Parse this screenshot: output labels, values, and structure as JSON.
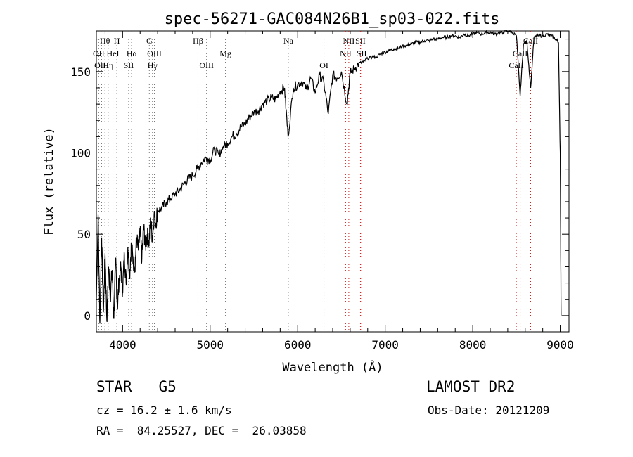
{
  "chart_data": {
    "type": "line",
    "title": "spec-56271-GAC084N26B1_sp03-022.fits",
    "xlabel": "Wavelength (Å)",
    "ylabel": "Flux (relative)",
    "xlim": [
      3700,
      9100
    ],
    "ylim": [
      -10,
      175
    ],
    "xticks": [
      4000,
      5000,
      6000,
      7000,
      8000,
      9000
    ],
    "yticks": [
      0,
      50,
      100,
      150
    ],
    "grid": false,
    "series": [
      {
        "x": [
          3700,
          3720,
          3740,
          3760,
          3780,
          3800,
          3820,
          3840,
          3860,
          3880,
          3900,
          3920,
          3940,
          3960,
          3980,
          4000,
          4020,
          4040,
          4060,
          4080,
          4100,
          4120,
          4140,
          4160,
          4180,
          4200,
          4220,
          4240,
          4260,
          4280,
          4300,
          4320,
          4340,
          4360,
          4380,
          4400,
          4450,
          4500,
          4550,
          4600,
          4650,
          4700,
          4750,
          4800,
          4850,
          4900,
          4950,
          5000,
          5050,
          5100,
          5150,
          5200,
          5250,
          5300,
          5350,
          5400,
          5450,
          5500,
          5550,
          5600,
          5650,
          5700,
          5750,
          5800,
          5850,
          5890,
          5950,
          6000,
          6050,
          6100,
          6150,
          6200,
          6250,
          6300,
          6350,
          6400,
          6450,
          6500,
          6563,
          6600,
          6650,
          6700,
          6750,
          6800,
          6850,
          6900,
          6950,
          7000,
          7050,
          7100,
          7150,
          7200,
          7250,
          7300,
          7350,
          7400,
          7450,
          7500,
          7550,
          7600,
          7650,
          7700,
          7750,
          7800,
          7850,
          7900,
          7950,
          8000,
          8050,
          8100,
          8150,
          8200,
          8250,
          8300,
          8350,
          8400,
          8450,
          8500,
          8542,
          8580,
          8620,
          8662,
          8700,
          8750,
          8800,
          8850,
          8900,
          8950,
          8980,
          9000,
          9010
        ],
        "y": [
          10,
          62,
          -5,
          48,
          2,
          38,
          -3,
          30,
          12,
          28,
          -2,
          35,
          5,
          22,
          30,
          15,
          38,
          20,
          42,
          25,
          44,
          33,
          30,
          48,
          40,
          52,
          35,
          55,
          42,
          50,
          44,
          58,
          48,
          62,
          57,
          65,
          66,
          70,
          72,
          75,
          77,
          81,
          84,
          86,
          90,
          94,
          97,
          96,
          102,
          99,
          104,
          106,
          110,
          112,
          116,
          118,
          122,
          125,
          126,
          130,
          132,
          134,
          133,
          138,
          140,
          110,
          140,
          142,
          144,
          139,
          146,
          137,
          148,
          143,
          124,
          148,
          146,
          150,
          130,
          149,
          152,
          155,
          156,
          158,
          159,
          159,
          161,
          162,
          163,
          164,
          164,
          166,
          166,
          167,
          168,
          168,
          169,
          169,
          170,
          170,
          171,
          171,
          172,
          172,
          171,
          173,
          172,
          173,
          174,
          173,
          174,
          174,
          173,
          174,
          174,
          175,
          174,
          172,
          135,
          167,
          168,
          140,
          171,
          172,
          172,
          173,
          172,
          170,
          168,
          100,
          0
        ]
      }
    ],
    "line_labels": [
      {
        "text": "Hθ",
        "x": 3798
      },
      {
        "text": "OII",
        "x": 3727
      },
      {
        "text": "OIII",
        "x": 3760
      },
      {
        "text": "HeI",
        "x": 3889
      },
      {
        "text": "Hη",
        "x": 3835
      },
      {
        "text": "H",
        "x": 3934
      },
      {
        "text": "Hδ",
        "x": 4102
      },
      {
        "text": "SII",
        "x": 4069
      },
      {
        "text": "G",
        "x": 4305
      },
      {
        "text": "OIII",
        "x": 4363
      },
      {
        "text": "Hγ",
        "x": 4341
      },
      {
        "text": "Hβ",
        "x": 4861
      },
      {
        "text": "OIII",
        "x": 4959
      },
      {
        "text": "Mg",
        "x": 5175
      },
      {
        "text": "Na",
        "x": 5893
      },
      {
        "text": "OI",
        "x": 6300
      },
      {
        "text": "NII",
        "x": 6584
      },
      {
        "text": "SII",
        "x": 6717
      },
      {
        "text": "NII",
        "x": 6548
      },
      {
        "text": "SII",
        "x": 6731
      },
      {
        "text": "CaII",
        "x": 8662
      },
      {
        "text": "CaII",
        "x": 8542
      },
      {
        "text": "CaII",
        "x": 8498
      }
    ],
    "line_label_rows": [
      1,
      2,
      3,
      2,
      3,
      1,
      2,
      3,
      1,
      2,
      3,
      1,
      3,
      2,
      1,
      3,
      1,
      1,
      2,
      2,
      1,
      2,
      3
    ],
    "line_markers": [
      {
        "x": 3727,
        "color": "#777777"
      },
      {
        "x": 3760,
        "color": "#777777"
      },
      {
        "x": 3798,
        "color": "#777777"
      },
      {
        "x": 3835,
        "color": "#777777"
      },
      {
        "x": 3889,
        "color": "#777777"
      },
      {
        "x": 3934,
        "color": "#777777"
      },
      {
        "x": 4069,
        "color": "#777777"
      },
      {
        "x": 4102,
        "color": "#777777"
      },
      {
        "x": 4305,
        "color": "#777777"
      },
      {
        "x": 4341,
        "color": "#777777"
      },
      {
        "x": 4363,
        "color": "#777777"
      },
      {
        "x": 4861,
        "color": "#777777"
      },
      {
        "x": 4959,
        "color": "#777777"
      },
      {
        "x": 5175,
        "color": "#777777"
      },
      {
        "x": 5893,
        "color": "#777777"
      },
      {
        "x": 6300,
        "color": "#777777"
      },
      {
        "x": 6548,
        "color": "#cc2222"
      },
      {
        "x": 6584,
        "color": "#cc2222"
      },
      {
        "x": 6717,
        "color": "#cc2222"
      },
      {
        "x": 6731,
        "color": "#cc2222"
      },
      {
        "x": 8498,
        "color": "#cc2222"
      },
      {
        "x": 8542,
        "color": "#cc2222"
      },
      {
        "x": 8662,
        "color": "#cc2222"
      }
    ]
  },
  "info": {
    "star_class": "STAR   G5",
    "survey": "LAMOST DR2",
    "redshift": "cz = 16.2 ± 1.6 km/s",
    "obs_date": "Obs-Date: 20121209",
    "coords": "RA =  84.25527, DEC =  26.03858"
  }
}
